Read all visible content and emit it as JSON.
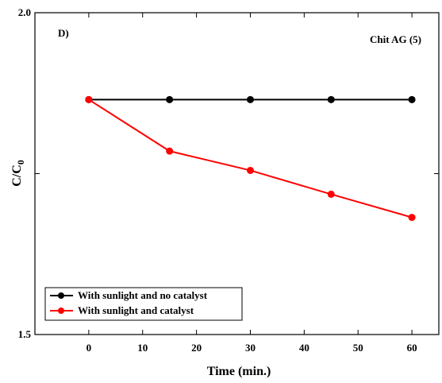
{
  "chart_data": {
    "type": "line",
    "xlabel": "Time (min.)",
    "ylabel_main": "C/C",
    "ylabel_sub": "0",
    "x": [
      0,
      15,
      30,
      45,
      60
    ],
    "xlim": [
      -10,
      65
    ],
    "xticks": [
      0,
      10,
      20,
      30,
      40,
      50,
      60
    ],
    "ylim": [
      1.5,
      2.0
    ],
    "yticks": [
      1.5,
      2.0
    ],
    "yticks_unlabeled": [
      1.75
    ],
    "ytick_labels": [
      "1.5",
      "2.0"
    ],
    "grid": false,
    "legend_position": "bottom-left",
    "panel_label": "D)",
    "annotation": "Chit AG (5)",
    "series": [
      {
        "name": "With sunlight and no catalyst",
        "color": "#000000",
        "values": [
          1.865,
          1.865,
          1.865,
          1.865,
          1.865
        ]
      },
      {
        "name": "With sunlight and catalyst",
        "color": "#ff0000",
        "values": [
          1.865,
          1.785,
          1.755,
          1.718,
          1.682
        ]
      }
    ]
  }
}
